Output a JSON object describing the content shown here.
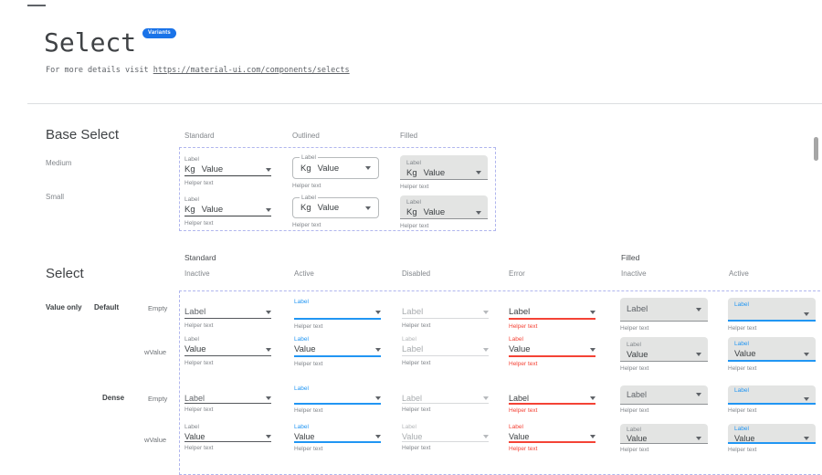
{
  "page": {
    "title": "Select",
    "badge": "Variants",
    "intro_prefix": "For more details visit ",
    "intro_link": "https://material-ui.com/components/selects"
  },
  "colors": {
    "accent_blue": "#2196f3",
    "error_red": "#f44336",
    "badge_blue": "#1a73e8",
    "filled_bg": "#e3e4e3",
    "dashed_border": "#b0b6ee"
  },
  "base_section": {
    "heading": "Base Select",
    "column_headers": [
      "Standard",
      "Outlined",
      "Filled"
    ],
    "row_labels": [
      "Medium",
      "Small"
    ],
    "label": "Label",
    "prefix": "Kg",
    "value": "Value",
    "helper": "Helper text"
  },
  "select_section": {
    "heading": "Select",
    "group_headers": [
      "Standard",
      "Filled"
    ],
    "state_headers": [
      "Inactive",
      "Active",
      "Disabled",
      "Error",
      "Inactive",
      "Active"
    ],
    "row_group_label": "Value only",
    "size_labels": [
      "Default",
      "Dense"
    ],
    "variant_labels": [
      "Empty",
      "wValue"
    ],
    "rows": [
      {
        "size": "Default",
        "variant": "Empty",
        "cells": [
          {
            "kind": "standard",
            "state": "inactive",
            "caption": "",
            "value": "Label",
            "helper": "Helper text"
          },
          {
            "kind": "standard",
            "state": "active",
            "caption": "Label",
            "value": "",
            "helper": "Helper text"
          },
          {
            "kind": "standard",
            "state": "disabled",
            "caption": "",
            "value": "Label",
            "helper": "Helper text"
          },
          {
            "kind": "standard",
            "state": "error",
            "caption": "",
            "value": "Label",
            "helper": "Helper text"
          },
          {
            "kind": "filled",
            "state": "inactive",
            "caption": "",
            "value": "Label",
            "helper": "Helper text"
          },
          {
            "kind": "filled",
            "state": "active",
            "caption": "Label",
            "value": "",
            "helper": "Helper text"
          }
        ]
      },
      {
        "size": "Default",
        "variant": "wValue",
        "cells": [
          {
            "kind": "standard",
            "state": "inactive",
            "caption": "Label",
            "value": "Value",
            "helper": "Helper text"
          },
          {
            "kind": "standard",
            "state": "active",
            "caption": "Label",
            "value": "Value",
            "helper": "Helper text"
          },
          {
            "kind": "standard",
            "state": "disabled",
            "caption": "Label",
            "value": "Label",
            "helper": "Helper text"
          },
          {
            "kind": "standard",
            "state": "error",
            "caption": "Label",
            "value": "Value",
            "helper": "Helper text"
          },
          {
            "kind": "filled",
            "state": "inactive",
            "caption": "Label",
            "value": "Value",
            "helper": "Helper text"
          },
          {
            "kind": "filled",
            "state": "active",
            "caption": "Label",
            "value": "Value",
            "helper": "Helper text"
          }
        ]
      },
      {
        "size": "Dense",
        "variant": "Empty",
        "cells": [
          {
            "kind": "standard",
            "state": "inactive",
            "caption": "",
            "value": "Label",
            "helper": "Helper text"
          },
          {
            "kind": "standard",
            "state": "active",
            "caption": "Label",
            "value": "",
            "helper": "Helper text"
          },
          {
            "kind": "standard",
            "state": "disabled",
            "caption": "",
            "value": "Label",
            "helper": "Helper text"
          },
          {
            "kind": "standard",
            "state": "error",
            "caption": "",
            "value": "Label",
            "helper": "Helper text"
          },
          {
            "kind": "filled",
            "state": "inactive",
            "caption": "",
            "value": "Label",
            "helper": "Helper text"
          },
          {
            "kind": "filled",
            "state": "active",
            "caption": "Label",
            "value": "",
            "helper": "Helper text"
          }
        ]
      },
      {
        "size": "Dense",
        "variant": "wValue",
        "cells": [
          {
            "kind": "standard",
            "state": "inactive",
            "caption": "Label",
            "value": "Value",
            "helper": "Helper text"
          },
          {
            "kind": "standard",
            "state": "active",
            "caption": "Label",
            "value": "Value",
            "helper": "Helper text"
          },
          {
            "kind": "standard",
            "state": "disabled",
            "caption": "Label",
            "value": "Value",
            "helper": "Helper text"
          },
          {
            "kind": "standard",
            "state": "error",
            "caption": "Label",
            "value": "Value",
            "helper": "Helper text"
          },
          {
            "kind": "filled",
            "state": "inactive",
            "caption": "Label",
            "value": "Value",
            "helper": "Helper text"
          },
          {
            "kind": "filled",
            "state": "active",
            "caption": "Label",
            "value": "Value",
            "helper": "Helper text"
          }
        ]
      }
    ]
  }
}
